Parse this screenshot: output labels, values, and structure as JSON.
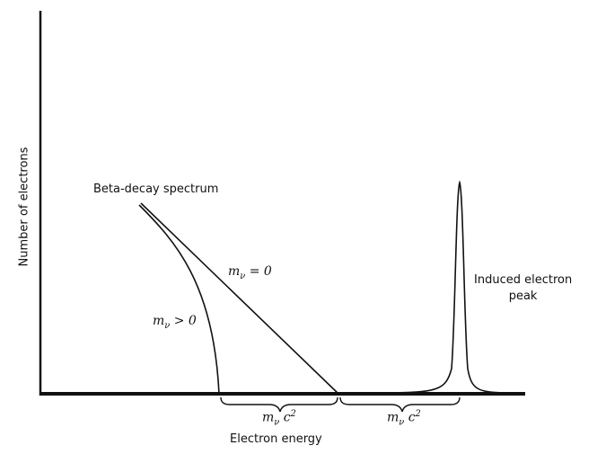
{
  "labels": {
    "y_axis": "Number of electrons",
    "x_axis": "Electron energy",
    "beta_spectrum": "Beta-decay spectrum",
    "induced_peak_line1": "Induced electron",
    "induced_peak_line2": "peak",
    "massless_curve": {
      "symbol": "m",
      "subscript": "ν",
      "rest": " = 0"
    },
    "massive_curve": {
      "symbol": "m",
      "subscript": "ν",
      "rest": " > 0"
    },
    "brace_left": {
      "symbol": "m",
      "subscript": "ν",
      "c": " c",
      "exp": "2"
    },
    "brace_right": {
      "symbol": "m",
      "subscript": "ν",
      "c": " c",
      "exp": "2"
    }
  },
  "colors": {
    "ink": "#111111",
    "background": "#ffffff"
  }
}
